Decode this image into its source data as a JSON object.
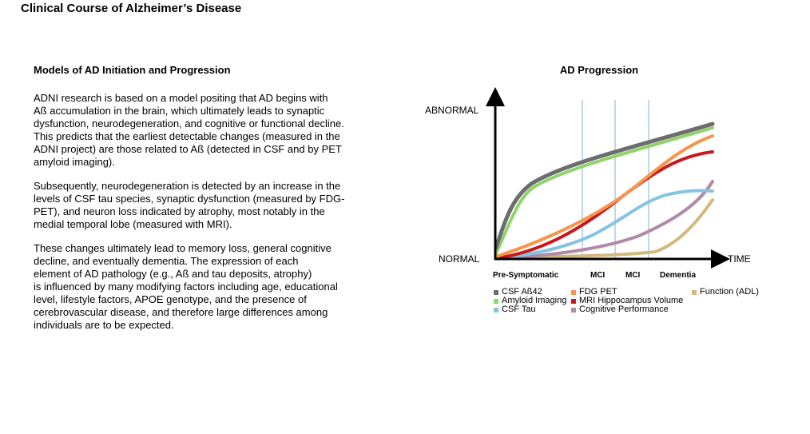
{
  "page_title": "Clinical Course of Alzheimer’s Disease",
  "text": {
    "heading": "Models of AD Initiation and Progression",
    "paragraphs": [
      "ADNI research is based on a model positing that AD begins with\nAß accumulation in the brain, which ultimately leads to synaptic\ndysfunction, neurodegeneration, and cognitive or functional decline.\nThis predicts that the earliest detectable changes (measured in the\nADNI project) are those related to Aß (detected in CSF and by PET\namyloid imaging).",
      "Subsequently, neurodegeneration is detected by an increase in the\nlevels of CSF tau species, synaptic dysfunction (measured by FDG-\nPET), and neuron loss indicated by atrophy, most notably in the\nmedial temporal lobe (measured with MRI).",
      "These changes ultimately lead to memory loss, general cognitive\ndecline, and eventually dementia. The expression of each\nelement of AD pathology (e.g., Aß and tau deposits, atrophy)\nis influenced by many modifying factors including age, educational\nlevel, lifestyle factors, APOE genotype, and the presence of\ncerebrovascular disease, and therefore large differences among\nindividuals are to be expected."
    ]
  },
  "diagram": {
    "title": "AD Progression",
    "y_top_label": "ABNORMAL",
    "y_bottom_label": "NORMAL",
    "x_label": "TIME",
    "stages": [
      "Pre-Symptomatic",
      "MCI",
      "MCI",
      "Dementia"
    ],
    "curves": [
      {
        "name": "CSF Aß42",
        "color": "#6d6d6d"
      },
      {
        "name": "Amyloid Imaging",
        "color": "#8fd46a"
      },
      {
        "name": "CSF Tau",
        "color": "#86c3e3"
      },
      {
        "name": "FDG PET",
        "color": "#f7954b"
      },
      {
        "name": "MRI Hippocampus Volume",
        "color": "#c8171d"
      },
      {
        "name": "Cognitive Performance",
        "color": "#b08aa6"
      },
      {
        "name": "Function (ADL)",
        "color": "#d2b97e"
      }
    ]
  }
}
